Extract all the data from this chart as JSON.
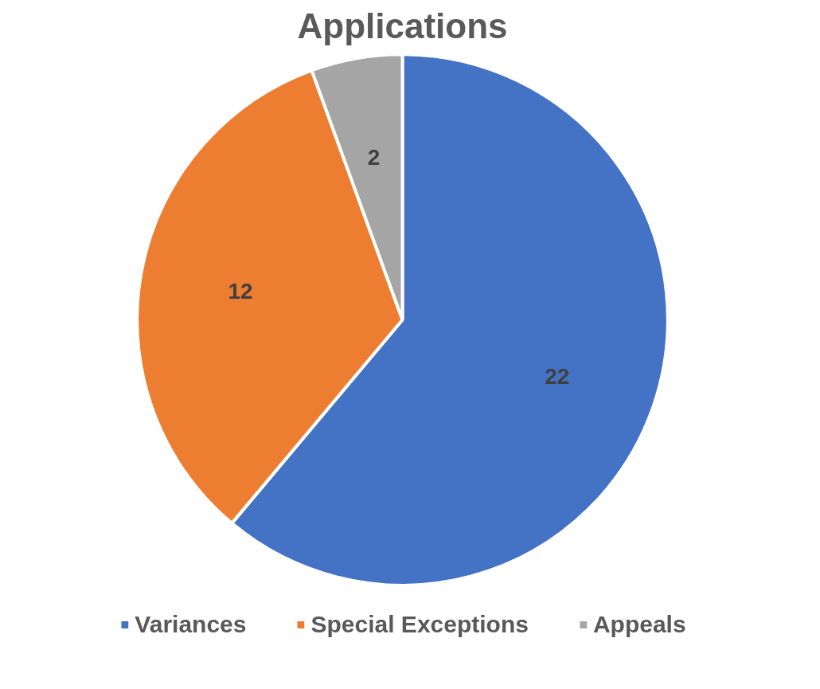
{
  "chart_data": {
    "type": "pie",
    "title": "Applications",
    "categories": [
      "Variances",
      "Special Exceptions",
      "Appeals"
    ],
    "values": [
      22,
      12,
      2
    ],
    "colors": [
      "#4472c4",
      "#ed7d31",
      "#a5a5a5"
    ],
    "data_labels": true,
    "legend": "bottom"
  }
}
